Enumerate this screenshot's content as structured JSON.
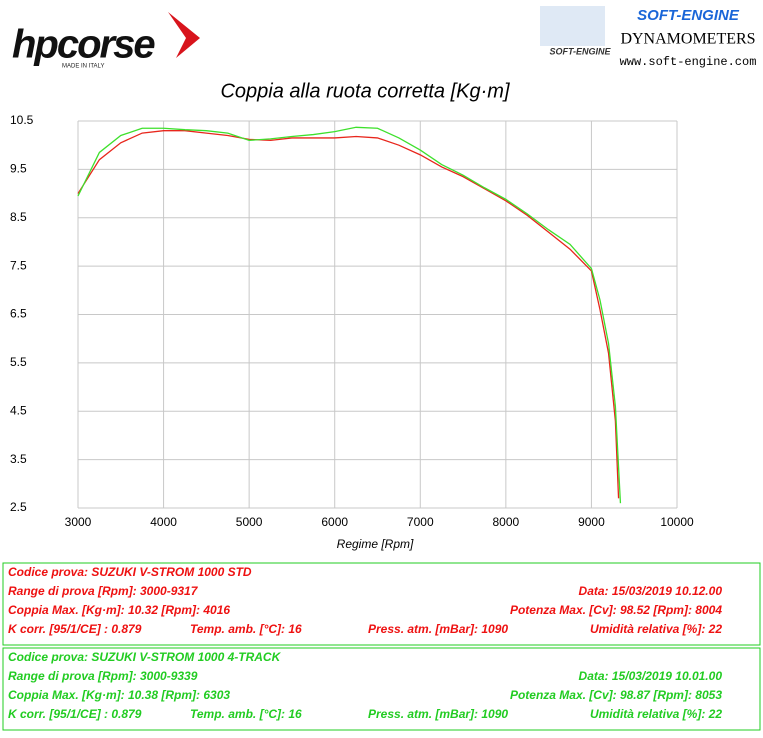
{
  "header": {
    "brand": "hpcorse",
    "brand_sub": "MADE IN ITALY",
    "dyno_brand": "SOFT-ENGINE",
    "dyno_logo_text": "SOFT-ENGINE",
    "dyno_type": "DYNAMOMETERS",
    "website": "www.soft-engine.com"
  },
  "chart_data": {
    "type": "line",
    "title": "Coppia alla ruota corretta [Kg·m]",
    "x_label": "Regime [Rpm]",
    "xlim": [
      3000,
      10000
    ],
    "xticks": [
      3000,
      4000,
      5000,
      6000,
      7000,
      8000,
      9000,
      10000
    ],
    "ylim": [
      2.5,
      10.5
    ],
    "yticks": [
      10.5,
      9.5,
      8.5,
      7.5,
      6.5,
      5.5,
      4.5,
      3.5,
      2.5
    ],
    "grid": true,
    "series": [
      {
        "color": "#e8261c",
        "x": [
          3000,
          3250,
          3500,
          3750,
          4000,
          4250,
          4500,
          4750,
          5000,
          5250,
          5500,
          5750,
          6000,
          6250,
          6500,
          6750,
          7000,
          7250,
          7500,
          7750,
          8000,
          8250,
          8500,
          8750,
          9000,
          9100,
          9200,
          9280,
          9317
        ],
        "values": [
          9.0,
          9.7,
          10.05,
          10.25,
          10.3,
          10.3,
          10.25,
          10.2,
          10.12,
          10.1,
          10.15,
          10.15,
          10.15,
          10.18,
          10.15,
          10.0,
          9.8,
          9.55,
          9.35,
          9.1,
          8.85,
          8.55,
          8.2,
          7.85,
          7.4,
          6.6,
          5.7,
          4.3,
          2.7
        ]
      },
      {
        "color": "#3ee02c",
        "x": [
          3000,
          3250,
          3500,
          3750,
          4000,
          4250,
          4500,
          4750,
          5000,
          5250,
          5500,
          5750,
          6000,
          6250,
          6500,
          6750,
          7000,
          7250,
          7500,
          7750,
          8000,
          8250,
          8500,
          8750,
          9000,
          9100,
          9200,
          9280,
          9339
        ],
        "values": [
          8.95,
          9.85,
          10.2,
          10.35,
          10.35,
          10.32,
          10.3,
          10.25,
          10.1,
          10.13,
          10.18,
          10.22,
          10.28,
          10.37,
          10.35,
          10.15,
          9.9,
          9.6,
          9.38,
          9.12,
          8.88,
          8.58,
          8.25,
          7.95,
          7.45,
          6.8,
          5.9,
          4.6,
          2.6
        ]
      }
    ]
  },
  "test_info": [
    {
      "color": "#ee1111",
      "rows": [
        [
          "Codice prova: SUZUKI V-STROM 1000 STD"
        ],
        [
          "Range di prova [Rpm]: 3000-9317",
          "Data: 15/03/2019  10.12.00"
        ],
        [
          "Coppia Max. [Kg·m]: 10.32  [Rpm]: 4016",
          "Potenza Max. [Cv]: 98.52  [Rpm]: 8004"
        ],
        [
          "K corr. [95/1/CE] : 0.879",
          "Temp. amb. [°C]: 16",
          "Press. atm. [mBar]: 1090",
          "Umidità relativa [%]: 22"
        ]
      ]
    },
    {
      "color": "#22cc22",
      "rows": [
        [
          "Codice prova: SUZUKI V-STROM 1000  4-TRACK"
        ],
        [
          "Range di prova [Rpm]: 3000-9339",
          "Data: 15/03/2019  10.01.00"
        ],
        [
          "Coppia Max. [Kg·m]: 10.38  [Rpm]: 6303",
          "Potenza Max. [Cv]: 98.87  [Rpm]: 8053"
        ],
        [
          "K corr. [95/1/CE] : 0.879",
          "Temp. amb. [°C]: 16",
          "Press. atm. [mBar]: 1090",
          "Umidità relativa [%]: 22"
        ]
      ]
    }
  ]
}
